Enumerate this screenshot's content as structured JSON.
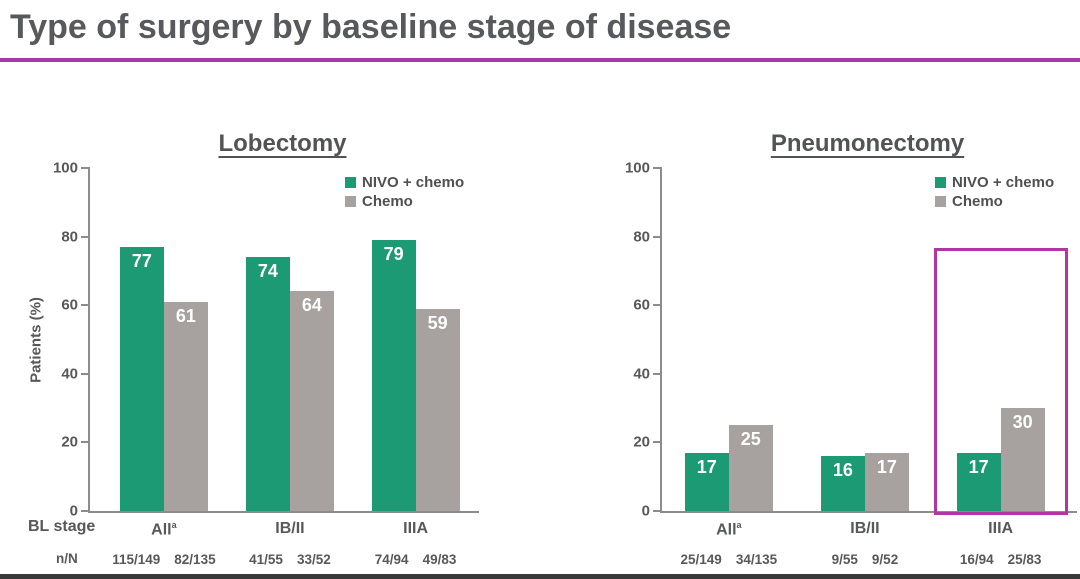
{
  "header": {
    "title": "Type of surgery by baseline stage of disease",
    "rule_color": "#a63aaa"
  },
  "footer": {
    "strip_color": "#383838"
  },
  "chart_data": [
    {
      "type": "bar",
      "title": "Lobectomy",
      "ylabel": "Patients (%)",
      "ylim": [
        0,
        100
      ],
      "ytick_step": 20,
      "legend_position": "top-right",
      "grid": false,
      "categories": [
        {
          "label": "All",
          "sup": "a"
        },
        {
          "label": "IB/II",
          "sup": ""
        },
        {
          "label": "IIIA",
          "sup": ""
        }
      ],
      "series": [
        {
          "name": "NIVO + chemo",
          "color": "#1b9a74",
          "values": [
            77,
            74,
            79
          ]
        },
        {
          "name": "Chemo",
          "color": "#a7a19f",
          "values": [
            61,
            64,
            59
          ]
        }
      ],
      "n_over_N": [
        [
          "115/149",
          "82/135"
        ],
        [
          "41/55",
          "33/52"
        ],
        [
          "74/94",
          "49/83"
        ]
      ],
      "row_labels": {
        "stage": "BL stage",
        "n": "n/N"
      }
    },
    {
      "type": "bar",
      "title": "Pneumonectomy",
      "ylabel": "",
      "ylim": [
        0,
        100
      ],
      "ytick_step": 20,
      "legend_position": "top-right",
      "grid": false,
      "categories": [
        {
          "label": "All",
          "sup": "a"
        },
        {
          "label": "IB/II",
          "sup": ""
        },
        {
          "label": "IIIA",
          "sup": ""
        }
      ],
      "series": [
        {
          "name": "NIVO + chemo",
          "color": "#1b9a74",
          "values": [
            17,
            16,
            17
          ]
        },
        {
          "name": "Chemo",
          "color": "#a7a19f",
          "values": [
            25,
            17,
            30
          ]
        }
      ],
      "n_over_N": [
        [
          "25/149",
          "34/135"
        ],
        [
          "9/55",
          "9/52"
        ],
        [
          "16/94",
          "25/83"
        ]
      ],
      "highlight": {
        "group_index": 2,
        "color": "#b135a2",
        "height_pct": 76.7
      }
    }
  ]
}
